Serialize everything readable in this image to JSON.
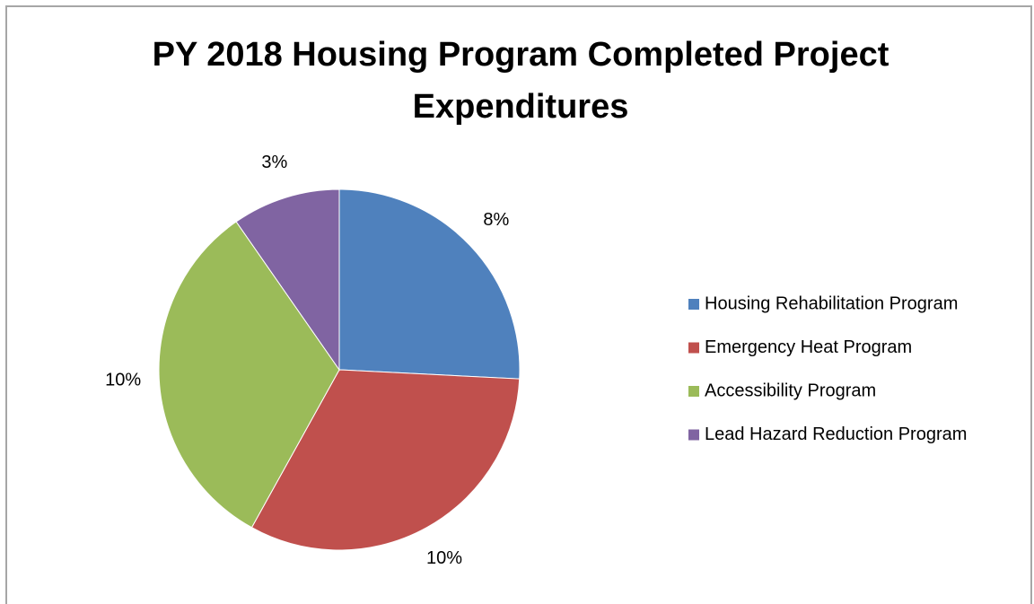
{
  "chart_data": {
    "type": "pie",
    "title": "PY 2018 Housing Program Completed Project Expenditures",
    "categories": [
      "Housing Rehabilitation Program",
      "Emergency Heat Program",
      "Accessibility Program",
      "Lead Hazard Reduction Program"
    ],
    "values": [
      8,
      10,
      10,
      3
    ],
    "value_labels": [
      "8%",
      "10%",
      "10%",
      "3%"
    ],
    "colors": [
      "#4f81bd",
      "#c0504d",
      "#9bbb59",
      "#8064a2"
    ],
    "legend": "right"
  }
}
